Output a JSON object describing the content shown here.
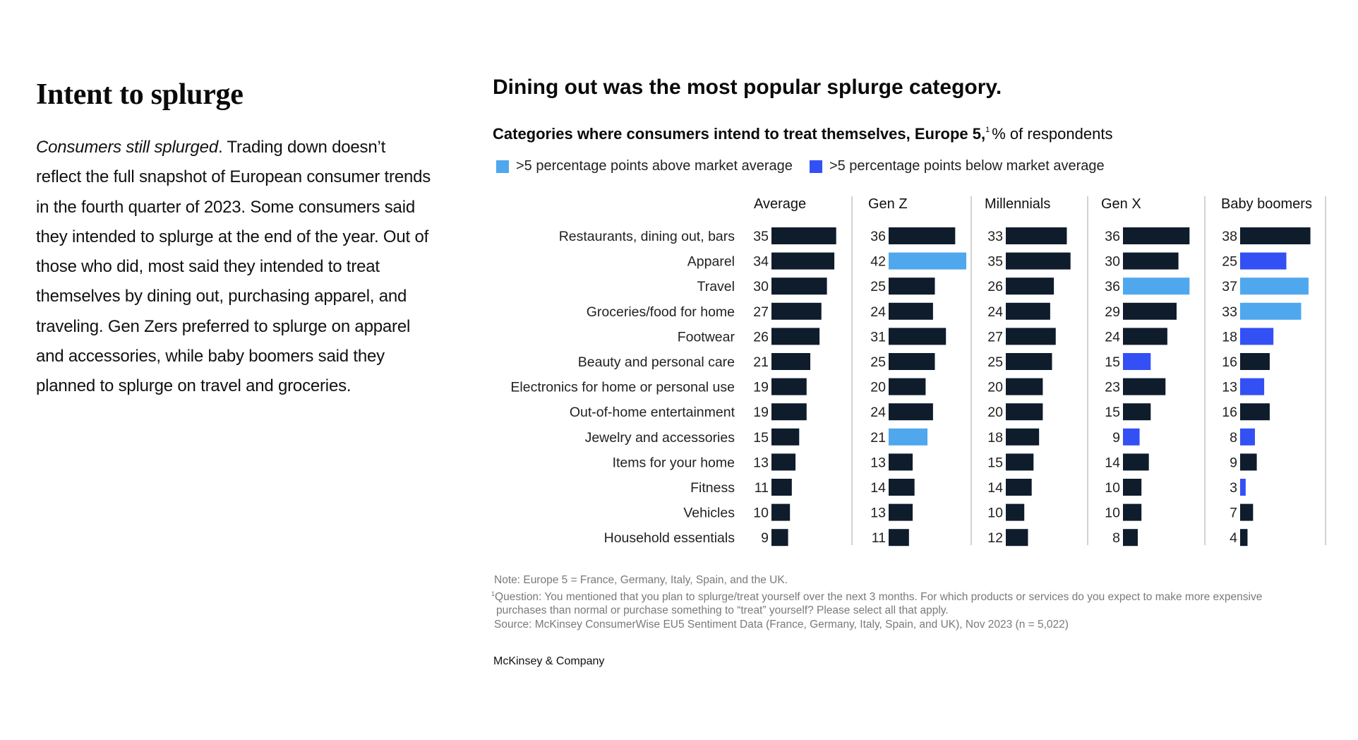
{
  "left": {
    "heading": "Intent to splurge",
    "body_italic": "Consumers still splurged",
    "body_rest": ". Trading down doesn’t reflect the full snapshot of European consumer trends in the fourth quarter of 2023. Some consumers said they intended to splurge at the end of the year. Out of those who did, most said they intended to treat themselves by dining out, purchasing apparel, and traveling. Gen Zers preferred to splurge on apparel and accessories, while baby boomers said they planned to splurge on travel and groceries."
  },
  "chart_data": {
    "type": "bar",
    "orientation": "horizontal",
    "title": "Dining out was the most popular splurge category.",
    "subtitle_bold": "Categories where consumers intend to treat themselves, Europe 5,",
    "subtitle_footnote_mark": "1",
    "subtitle_rest": "% of respondents",
    "legend": [
      {
        "key": "above",
        "label": ">5 percentage points above market average",
        "color": "#4FA7EE"
      },
      {
        "key": "below",
        "label": ">5 percentage points below market average",
        "color": "#3350F5"
      }
    ],
    "default_color": "#0E1C2C",
    "legend_placement": "top-left",
    "grid": false,
    "xlim": [
      0,
      42
    ],
    "categories": [
      "Restaurants, dining out, bars",
      "Apparel",
      "Travel",
      "Groceries/food for home",
      "Footwear",
      "Beauty and personal care",
      "Electronics for home or personal use",
      "Out-of-home entertainment",
      "Jewelry and accessories",
      "Items for your home",
      "Fitness",
      "Vehicles",
      "Household essentials"
    ],
    "series": [
      {
        "name": "Average",
        "values": [
          35,
          34,
          30,
          27,
          26,
          21,
          19,
          19,
          15,
          13,
          11,
          10,
          9
        ],
        "highlight": [
          null,
          null,
          null,
          null,
          null,
          null,
          null,
          null,
          null,
          null,
          null,
          null,
          null
        ]
      },
      {
        "name": "Gen Z",
        "values": [
          36,
          42,
          25,
          24,
          31,
          25,
          20,
          24,
          21,
          13,
          14,
          13,
          11
        ],
        "highlight": [
          null,
          "above",
          null,
          null,
          null,
          null,
          null,
          null,
          "above",
          null,
          null,
          null,
          null
        ]
      },
      {
        "name": "Millennials",
        "values": [
          33,
          35,
          26,
          24,
          27,
          25,
          20,
          20,
          18,
          15,
          14,
          10,
          12
        ],
        "highlight": [
          null,
          null,
          null,
          null,
          null,
          null,
          null,
          null,
          null,
          null,
          null,
          null,
          null
        ]
      },
      {
        "name": "Gen X",
        "values": [
          36,
          30,
          36,
          29,
          24,
          15,
          23,
          15,
          9,
          14,
          10,
          10,
          8
        ],
        "highlight": [
          null,
          null,
          "above",
          null,
          null,
          "below",
          null,
          null,
          "below",
          null,
          null,
          null,
          null
        ]
      },
      {
        "name": "Baby boomers",
        "values": [
          38,
          25,
          37,
          33,
          18,
          16,
          13,
          16,
          8,
          9,
          3,
          7,
          4
        ],
        "highlight": [
          null,
          "below",
          "above",
          "above",
          "below",
          null,
          "below",
          null,
          "below",
          null,
          "below",
          null,
          null
        ]
      }
    ]
  },
  "notes": {
    "note": "Note: Europe 5 = France, Germany, Italy, Spain, and the UK.",
    "question_mark": "1",
    "question_line1": "Question: You mentioned that you plan to splurge/treat yourself over the next 3 months. For which products or services do you expect to make more expensive",
    "question_line2": "purchases than normal or purchase something to “treat” yourself? Please select all that apply.",
    "source": "Source: McKinsey ConsumerWise EU5 Sentiment Data (France, Germany, Italy, Spain, and UK), Nov 2023 (n = 5,022)"
  },
  "brand": "McKinsey & Company"
}
